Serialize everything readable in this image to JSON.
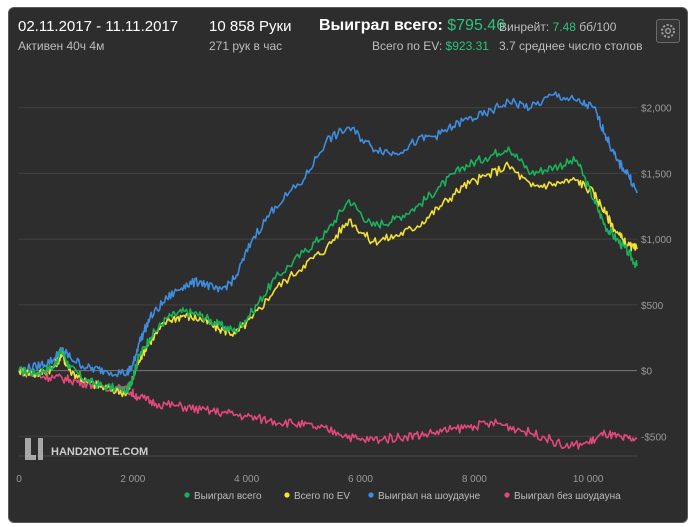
{
  "header": {
    "date_range": "02.11.2017 - 11.11.2017",
    "active": "Активен 40ч 4м",
    "hands": "10 858 Руки",
    "hands_per_hour": "271 рук в час",
    "won_total_label": "Выиграл всего:",
    "won_total_value": "$795.46",
    "ev_label": "Всего по EV:",
    "ev_value": "$923.31",
    "winrate_label": "Винрейт:",
    "winrate_value": "7.48",
    "winrate_unit": "бб/100",
    "avg_tables": "3.7 среднее число столов"
  },
  "brand": "HAND2NOTE.COM",
  "colors": {
    "background": "#2d2d2d",
    "won_total": "#19b25b",
    "ev": "#f2e232",
    "showdown": "#3f8de0",
    "no_showdown": "#e2487a",
    "accent_green": "#2ec27e"
  },
  "chart_data": {
    "type": "line",
    "x_ticks": [
      0,
      2000,
      4000,
      6000,
      8000,
      10000
    ],
    "x_tick_labels": [
      "0",
      "2 000",
      "4 000",
      "6 000",
      "8 000",
      "10 000"
    ],
    "y_ticks": [
      -500,
      0,
      500,
      1000,
      1500,
      2000
    ],
    "y_tick_labels": [
      "-$500",
      "$0",
      "$500",
      "$1,000",
      "$1,500",
      "$2,000"
    ],
    "xlim": [
      0,
      10858
    ],
    "ylim": [
      -650,
      2150
    ],
    "grid": "horizontal",
    "legend_position": "bottom",
    "series": [
      {
        "name": "Выиграл всего",
        "color": "#19b25b",
        "x": [
          0,
          300,
          600,
          750,
          900,
          1200,
          1500,
          1900,
          2000,
          2100,
          2300,
          2600,
          2900,
          3200,
          3500,
          3800,
          4100,
          4500,
          5000,
          5400,
          5800,
          6200,
          6600,
          7000,
          7400,
          7800,
          8200,
          8600,
          9000,
          9400,
          9800,
          10100,
          10300,
          10500,
          10700,
          10858
        ],
        "y": [
          0,
          -20,
          30,
          150,
          20,
          -80,
          -120,
          -150,
          -50,
          100,
          250,
          400,
          450,
          420,
          350,
          300,
          450,
          700,
          900,
          1050,
          1300,
          1100,
          1150,
          1250,
          1400,
          1550,
          1620,
          1700,
          1500,
          1550,
          1600,
          1300,
          1100,
          1000,
          900,
          795
        ]
      },
      {
        "name": "Всего по EV",
        "color": "#f2e232",
        "x": [
          0,
          300,
          600,
          750,
          900,
          1200,
          1500,
          1900,
          2000,
          2100,
          2300,
          2600,
          2900,
          3200,
          3500,
          3800,
          4100,
          4500,
          5000,
          5400,
          5800,
          6200,
          6600,
          7000,
          7400,
          7800,
          8200,
          8600,
          9000,
          9400,
          9800,
          10100,
          10300,
          10500,
          10700,
          10858
        ],
        "y": [
          0,
          -30,
          20,
          120,
          0,
          -90,
          -130,
          -170,
          -70,
          80,
          220,
          380,
          420,
          390,
          320,
          280,
          400,
          620,
          800,
          930,
          1150,
          980,
          1020,
          1100,
          1250,
          1400,
          1480,
          1560,
          1400,
          1420,
          1450,
          1350,
          1200,
          1050,
          950,
          923
        ]
      },
      {
        "name": "Выиграл на шоудауне",
        "color": "#3f8de0",
        "x": [
          0,
          300,
          600,
          750,
          900,
          1200,
          1500,
          1900,
          2000,
          2100,
          2300,
          2600,
          2900,
          3200,
          3500,
          3800,
          4100,
          4500,
          5000,
          5400,
          5800,
          6200,
          6600,
          7000,
          7400,
          7800,
          8200,
          8600,
          9000,
          9400,
          9800,
          10100,
          10300,
          10500,
          10700,
          10858
        ],
        "y": [
          0,
          30,
          80,
          160,
          100,
          20,
          0,
          -20,
          40,
          200,
          400,
          550,
          650,
          680,
          600,
          700,
          1000,
          1250,
          1450,
          1750,
          1850,
          1700,
          1650,
          1750,
          1800,
          1900,
          1950,
          2050,
          2000,
          2100,
          2050,
          2000,
          1800,
          1600,
          1500,
          1350
        ]
      },
      {
        "name": "Выиграл без шоудауна",
        "color": "#e2487a",
        "x": [
          0,
          300,
          600,
          900,
          1200,
          1500,
          1900,
          2100,
          2400,
          2800,
          3200,
          3600,
          4000,
          4400,
          4800,
          5200,
          5600,
          6000,
          6400,
          6800,
          7200,
          7600,
          8000,
          8400,
          8800,
          9200,
          9600,
          10000,
          10300,
          10600,
          10858
        ],
        "y": [
          0,
          -40,
          -50,
          -70,
          -100,
          -120,
          -150,
          -200,
          -250,
          -270,
          -300,
          -320,
          -350,
          -380,
          -400,
          -430,
          -470,
          -530,
          -520,
          -500,
          -480,
          -450,
          -420,
          -400,
          -450,
          -500,
          -580,
          -550,
          -480,
          -520,
          -520
        ]
      }
    ]
  }
}
